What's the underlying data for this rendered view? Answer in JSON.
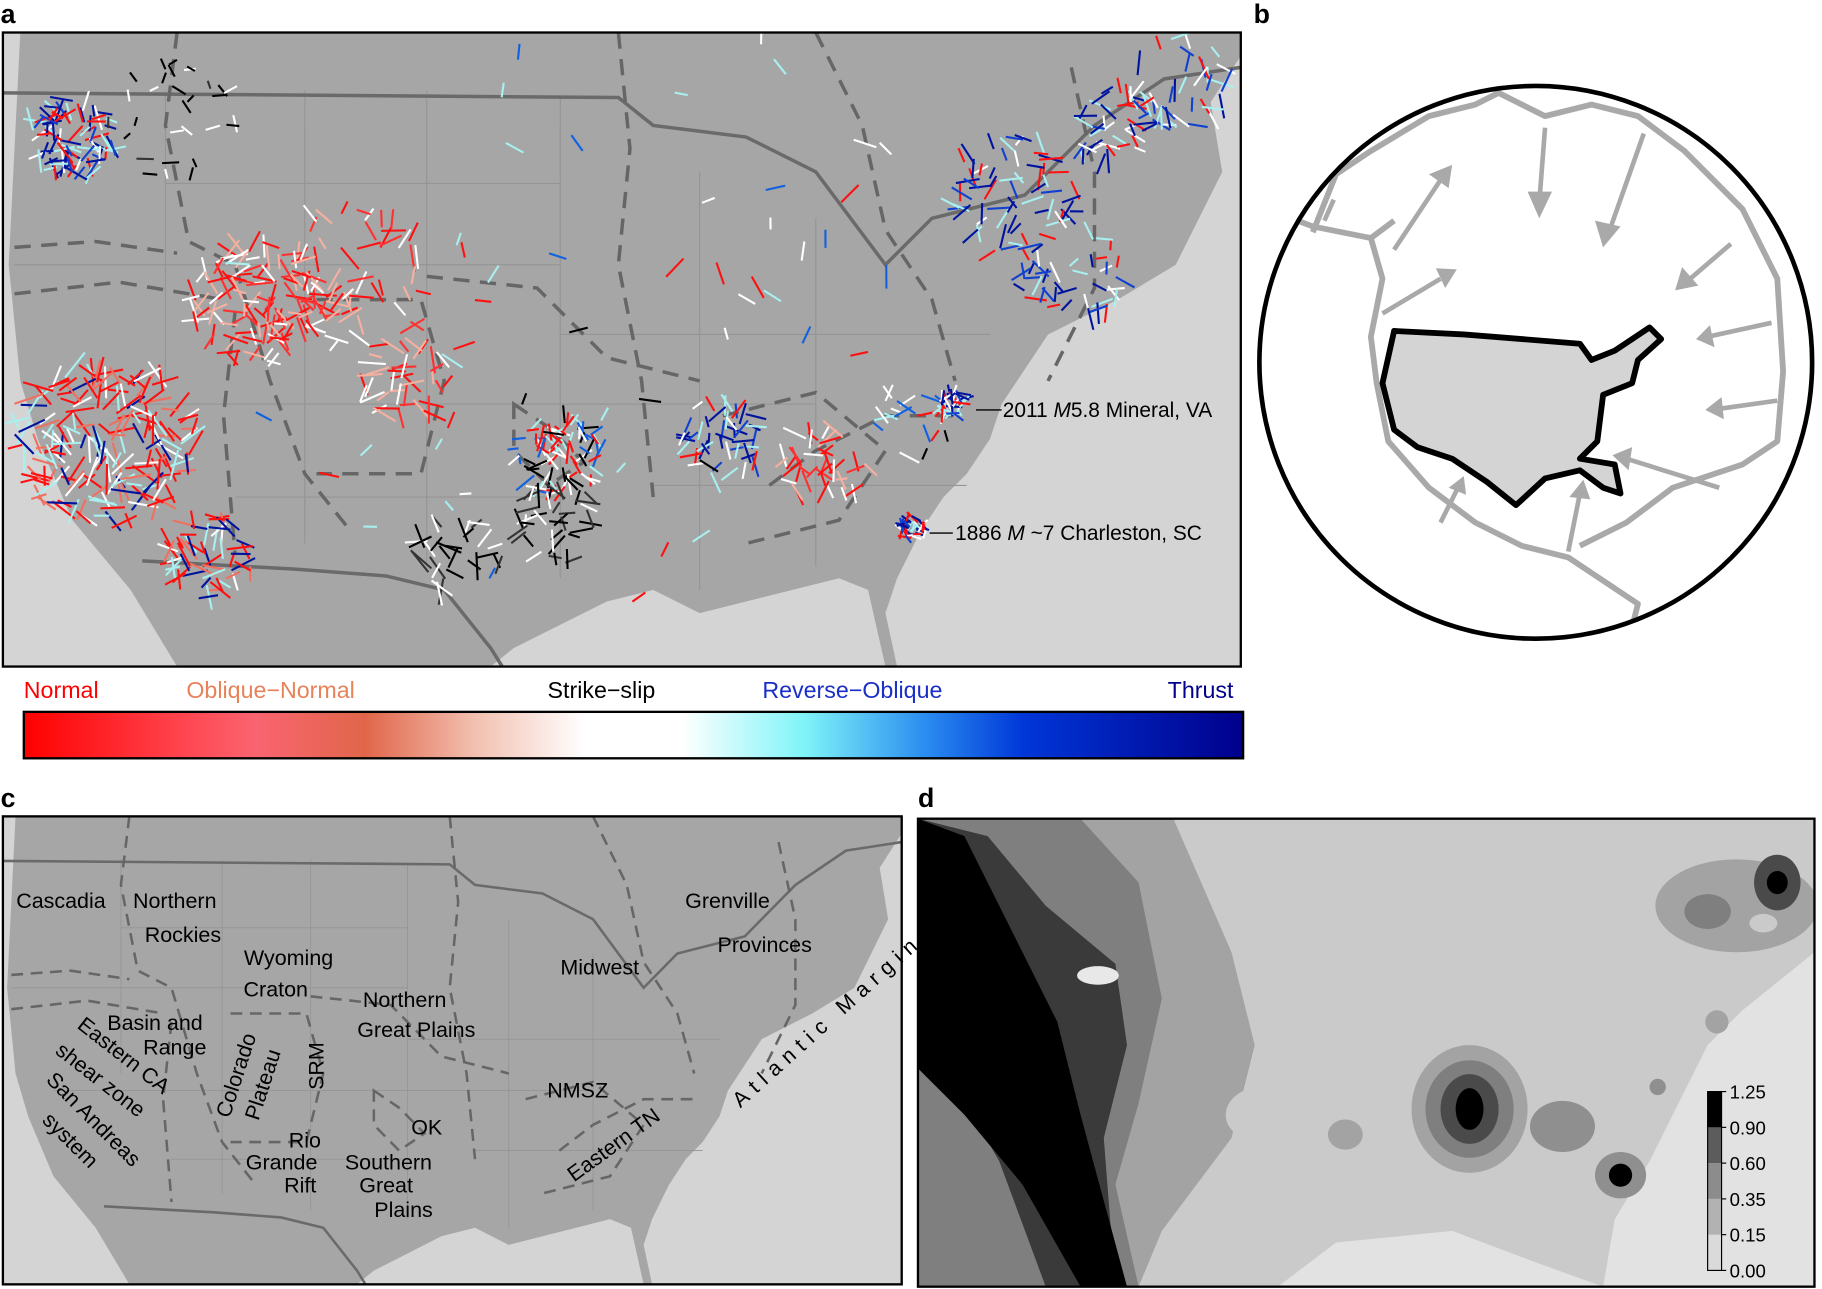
{
  "panels": {
    "a": {
      "label": "a",
      "legend": {
        "labels": [
          "Normal",
          "Oblique−Normal",
          "Strike−slip",
          "Reverse−Oblique",
          "Thrust"
        ]
      },
      "annotations": [
        {
          "prefix": "2011 ",
          "magnitude": "M",
          "suffix": "5.8 Mineral, VA"
        },
        {
          "prefix": "1886 ",
          "magnitude": "M",
          "suffix": " ~7 Charleston, SC"
        }
      ]
    },
    "b": {
      "label": "b"
    },
    "c": {
      "label": "c",
      "regions": [
        [
          "Cascadia"
        ],
        [
          "Northern",
          "Rockies"
        ],
        [
          "Wyoming",
          "Craton"
        ],
        [
          "Northern",
          "Great Plains"
        ],
        [
          "Midwest"
        ],
        [
          "Grenville",
          "Provinces"
        ],
        [
          "Atlantic Margin"
        ],
        [
          "Basin and",
          "Range"
        ],
        [
          "Eastern CA",
          "shear zone"
        ],
        [
          "San Andreas",
          "system"
        ],
        [
          "Colorado",
          "Plateau"
        ],
        [
          "SRM"
        ],
        [
          "Rio",
          "Grande",
          "Rift"
        ],
        [
          "OK"
        ],
        [
          "Southern",
          "Great",
          "Plains"
        ],
        [
          "NMSZ"
        ],
        [
          "Eastern TN"
        ]
      ]
    },
    "d": {
      "label": "d",
      "colorbar": {
        "ticks": [
          {
            "value": 0,
            "label": "0.00"
          },
          0.15,
          0.35,
          {
            "value": 0.6,
            "label": "0.60"
          },
          {
            "value": 0.9,
            "label": "0.90"
          },
          1.25
        ]
      }
    }
  }
}
